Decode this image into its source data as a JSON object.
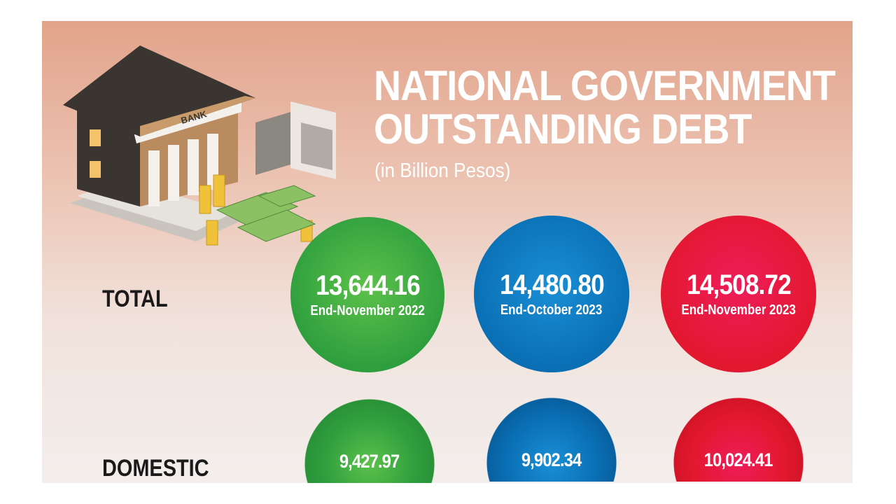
{
  "header": {
    "title_line1": "NATIONAL GOVERNMENT",
    "title_line2": "OUTSTANDING DEBT",
    "subtitle": "(in Billion Pesos)"
  },
  "illustration": {
    "bank_sign": "BANK"
  },
  "colors": {
    "period1": "#2f9f3e",
    "period2": "#0a6fb4",
    "period3": "#e3182f"
  },
  "chart_data": {
    "type": "table",
    "title": "NATIONAL GOVERNMENT OUTSTANDING DEBT",
    "unit": "(in Billion Pesos)",
    "categories": [
      "End-November 2022",
      "End-October 2023",
      "End-November 2023"
    ],
    "rows": [
      {
        "label": "TOTAL",
        "values": [
          "13,644.16",
          "14,480.80",
          "14,508.72"
        ]
      },
      {
        "label": "DOMESTIC",
        "values": [
          "9,427.97",
          "9,902.34",
          "10,024.41"
        ]
      }
    ]
  }
}
